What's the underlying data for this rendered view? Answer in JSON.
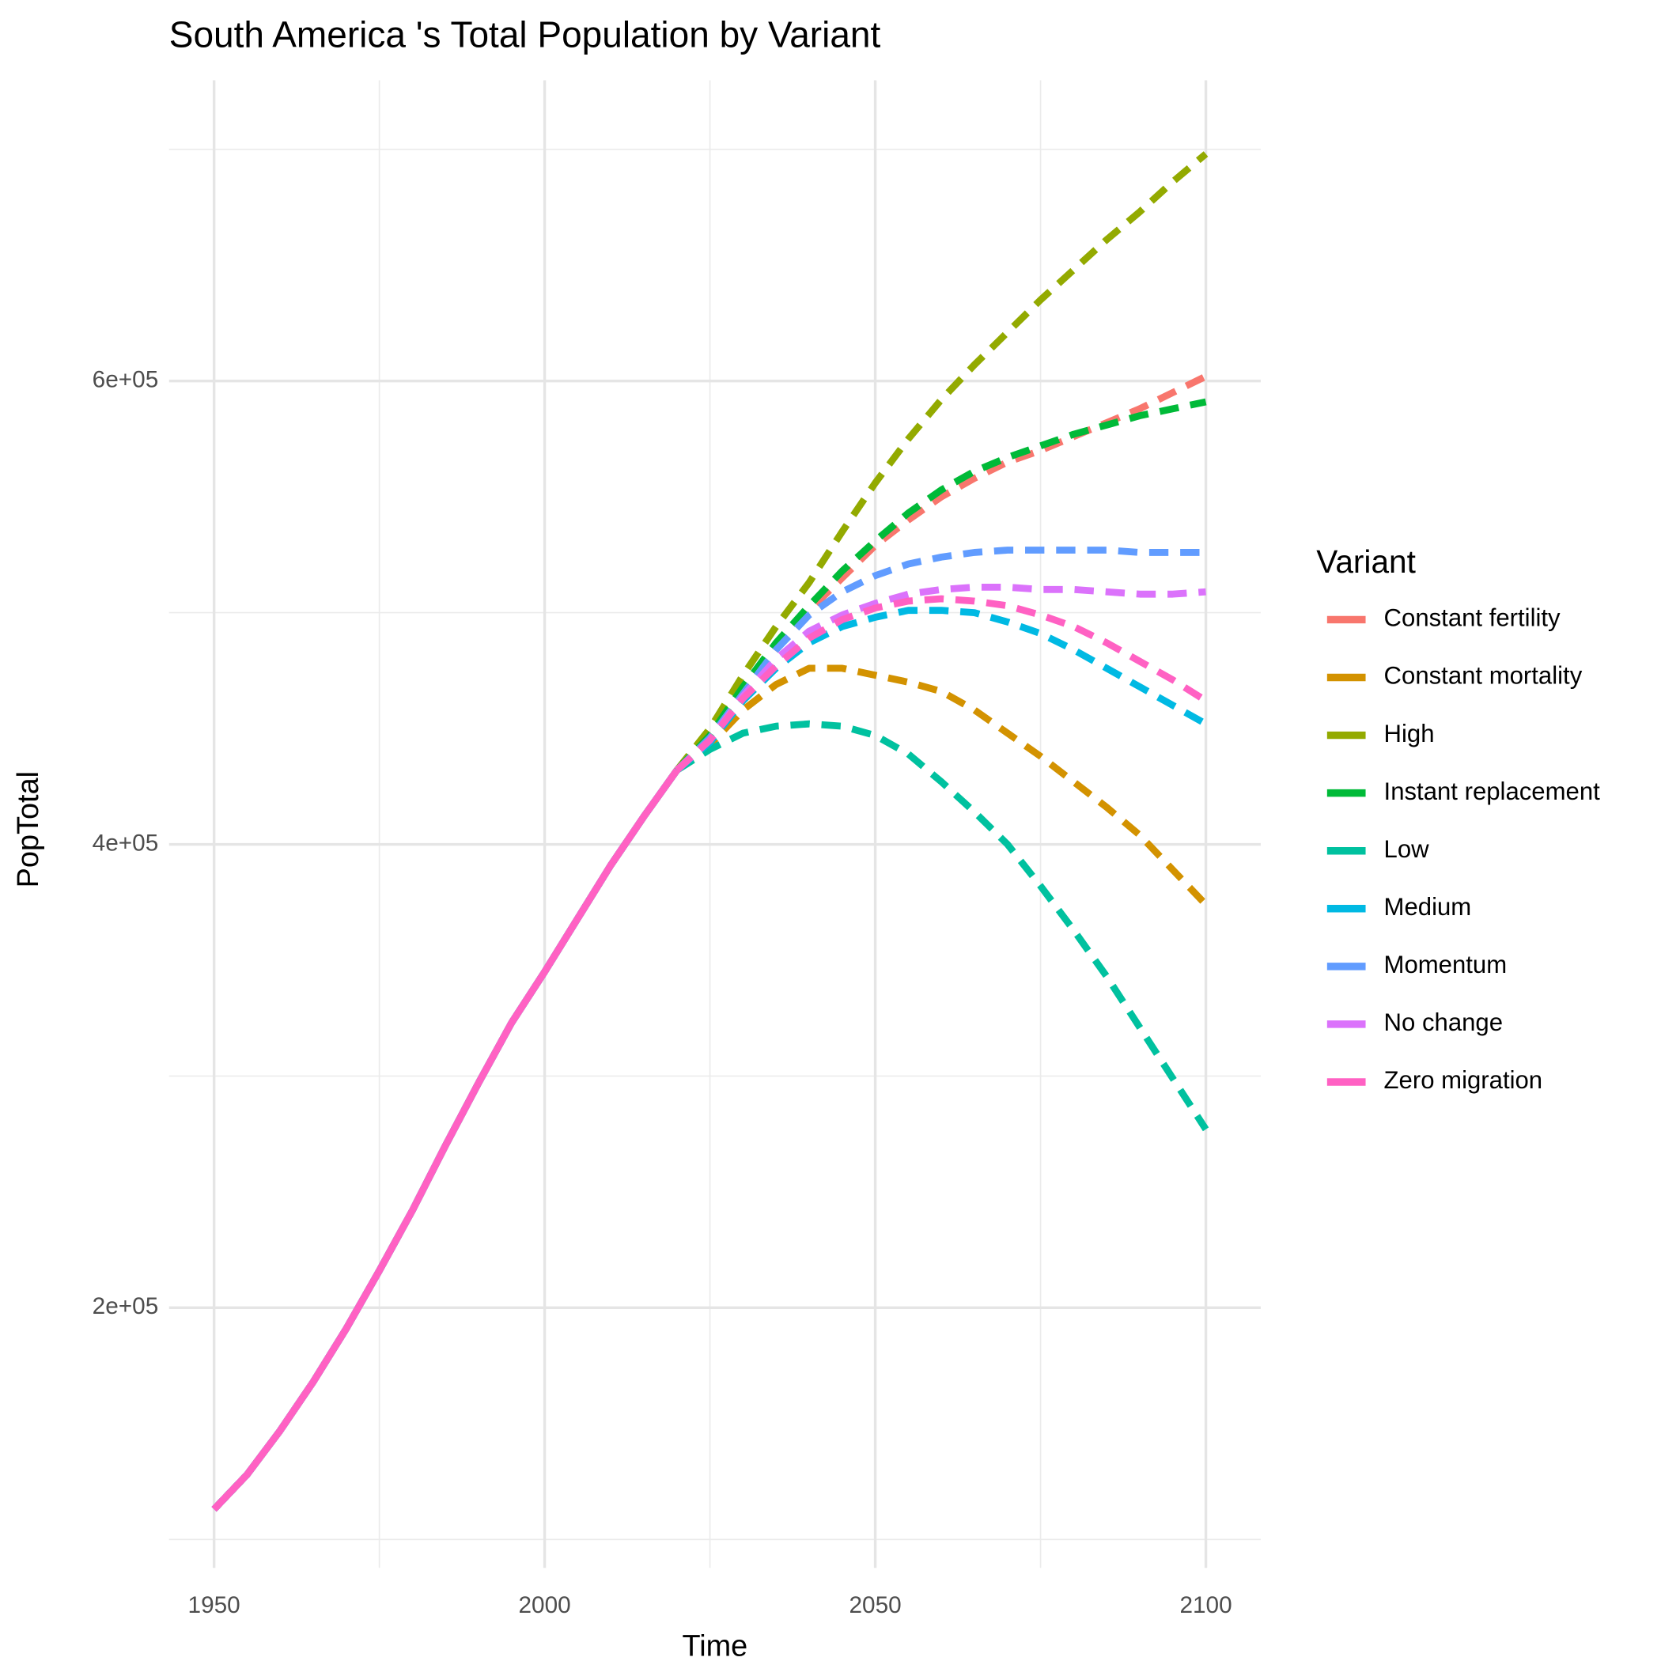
{
  "chart_data": {
    "type": "line",
    "title": "South America 's Total Population by Variant",
    "x_label": "Time",
    "y_label": "PopTotal",
    "legend_title": "Variant",
    "legend_position": "right",
    "grid": true,
    "dashed_from": 2020,
    "xlim": [
      1943.2,
      2108.3
    ],
    "ylim": [
      87700,
      729800
    ],
    "xticks": [
      1950,
      2000,
      2050,
      2100
    ],
    "xminor": [
      1975,
      2025,
      2075
    ],
    "yticks": [
      {
        "value": 200000,
        "label": "2e+05"
      },
      {
        "value": 400000,
        "label": "4e+05"
      },
      {
        "value": 600000,
        "label": "6e+05"
      }
    ],
    "yminor": [
      100000,
      300000,
      500000,
      700000
    ],
    "x": [
      1950,
      1955,
      1960,
      1965,
      1970,
      1975,
      1980,
      1985,
      1990,
      1995,
      2000,
      2005,
      2010,
      2015,
      2020,
      2025,
      2030,
      2035,
      2040,
      2045,
      2050,
      2055,
      2060,
      2065,
      2070,
      2075,
      2080,
      2085,
      2090,
      2095,
      2100
    ],
    "series": [
      {
        "name": "Constant fertility",
        "color": "#F8766D",
        "values": [
          113000,
          128000,
          147000,
          168000,
          191000,
          216000,
          242000,
          270000,
          297000,
          323000,
          345000,
          368000,
          391000,
          412000,
          432000,
          446000,
          466000,
          484000,
          501000,
          515000,
          529000,
          540000,
          550000,
          558000,
          565000,
          570000,
          576000,
          582000,
          588000,
          595000,
          602000
        ]
      },
      {
        "name": "Constant mortality",
        "color": "#D39200",
        "values": [
          113000,
          128000,
          147000,
          168000,
          191000,
          216000,
          242000,
          270000,
          297000,
          323000,
          345000,
          368000,
          391000,
          412000,
          432000,
          443000,
          458000,
          469000,
          476000,
          476000,
          473000,
          470000,
          466000,
          458000,
          448000,
          438000,
          427000,
          416000,
          404000,
          389000,
          374000
        ]
      },
      {
        "name": "High",
        "color": "#93AA00",
        "values": [
          113000,
          128000,
          147000,
          168000,
          191000,
          216000,
          242000,
          270000,
          297000,
          323000,
          345000,
          368000,
          391000,
          412000,
          432000,
          450000,
          473000,
          494000,
          513000,
          535000,
          556000,
          575000,
          592000,
          607000,
          621000,
          635000,
          648000,
          661000,
          673000,
          686000,
          698000
        ]
      },
      {
        "name": "Instant replacement",
        "color": "#00BA38",
        "values": [
          113000,
          128000,
          147000,
          168000,
          191000,
          216000,
          242000,
          270000,
          297000,
          323000,
          345000,
          368000,
          391000,
          412000,
          432000,
          447000,
          468000,
          487000,
          503000,
          518000,
          531000,
          543000,
          553000,
          561000,
          567000,
          572000,
          577000,
          581000,
          585000,
          588000,
          591000
        ]
      },
      {
        "name": "Low",
        "color": "#00C19F",
        "values": [
          113000,
          128000,
          147000,
          168000,
          191000,
          216000,
          242000,
          270000,
          297000,
          323000,
          345000,
          368000,
          391000,
          412000,
          432000,
          441000,
          448000,
          451000,
          452000,
          451000,
          447000,
          439000,
          427000,
          414000,
          400000,
          382000,
          363000,
          343000,
          321000,
          299000,
          277000
        ]
      },
      {
        "name": "Medium",
        "color": "#00B9E3",
        "values": [
          113000,
          128000,
          147000,
          168000,
          191000,
          216000,
          242000,
          270000,
          297000,
          323000,
          345000,
          368000,
          391000,
          412000,
          432000,
          444000,
          462000,
          476000,
          487000,
          494000,
          498000,
          501000,
          501000,
          500000,
          496000,
          491000,
          484000,
          476000,
          468000,
          460000,
          452000
        ]
      },
      {
        "name": "Momentum",
        "color": "#619CFF",
        "values": [
          113000,
          128000,
          147000,
          168000,
          191000,
          216000,
          242000,
          270000,
          297000,
          323000,
          345000,
          368000,
          391000,
          412000,
          432000,
          446000,
          465000,
          484000,
          499000,
          509000,
          516000,
          521000,
          524000,
          526000,
          527000,
          527000,
          527000,
          527000,
          526000,
          526000,
          526000
        ]
      },
      {
        "name": "No change",
        "color": "#DB72FB",
        "values": [
          113000,
          128000,
          147000,
          168000,
          191000,
          216000,
          242000,
          270000,
          297000,
          323000,
          345000,
          368000,
          391000,
          412000,
          432000,
          445000,
          464000,
          480000,
          492000,
          499000,
          504000,
          508000,
          510000,
          511000,
          511000,
          510000,
          510000,
          509000,
          508000,
          508000,
          509000
        ]
      },
      {
        "name": "Zero migration",
        "color": "#FF61C3",
        "values": [
          113000,
          128000,
          147000,
          168000,
          191000,
          216000,
          242000,
          270000,
          297000,
          323000,
          345000,
          368000,
          391000,
          412000,
          432000,
          445000,
          463000,
          477000,
          489000,
          497000,
          502000,
          505000,
          506000,
          505000,
          503000,
          499000,
          494000,
          487000,
          479000,
          471000,
          462000
        ]
      }
    ]
  }
}
